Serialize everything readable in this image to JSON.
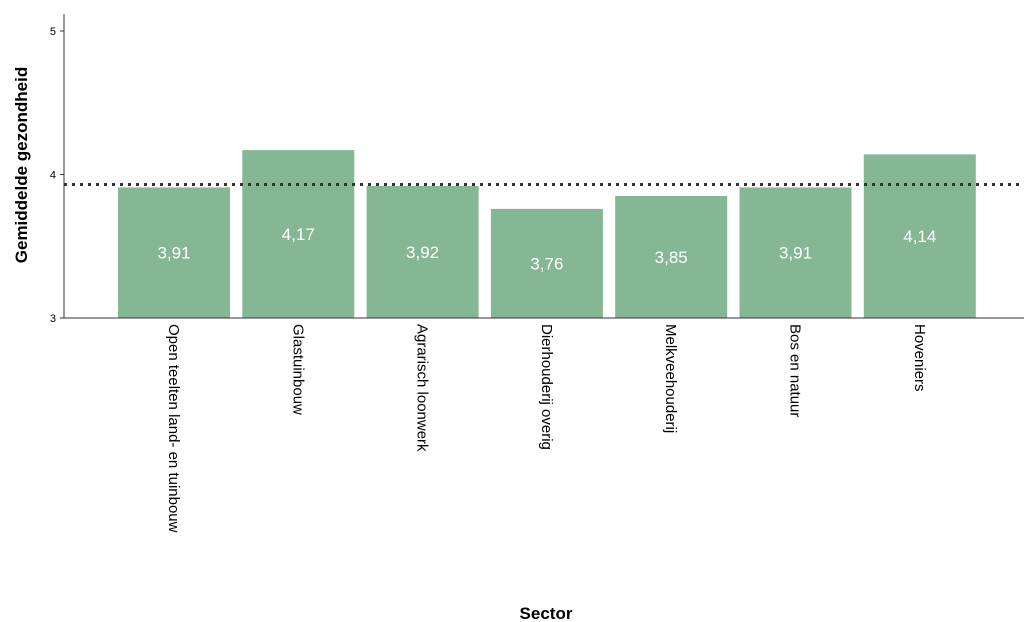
{
  "chart_data": {
    "type": "bar",
    "xlabel": "Sector",
    "ylabel": "Gemiddelde gezondheid",
    "categories": [
      "Open teelten land- en tuinbouw",
      "Glastuinbouw",
      "Agrarisch loonwerk",
      "Dierhouderij overig",
      "Melkveehouderij",
      "Bos en natuur",
      "Hoveniers"
    ],
    "values": [
      3.91,
      4.17,
      3.92,
      3.76,
      3.85,
      3.91,
      4.14
    ],
    "data_labels": [
      "3,91",
      "4,17",
      "3,92",
      "3,76",
      "3,85",
      "3,91",
      "4,14"
    ],
    "ylim": [
      3,
      5
    ],
    "yticks": [
      {
        "value": 3,
        "label": "3"
      },
      {
        "value": 4,
        "label": "4"
      },
      {
        "value": 5,
        "label": "5"
      }
    ],
    "reference_line": {
      "value": 3.93,
      "style": "dotted"
    },
    "bar_color": "#86b794",
    "grid": false
  }
}
